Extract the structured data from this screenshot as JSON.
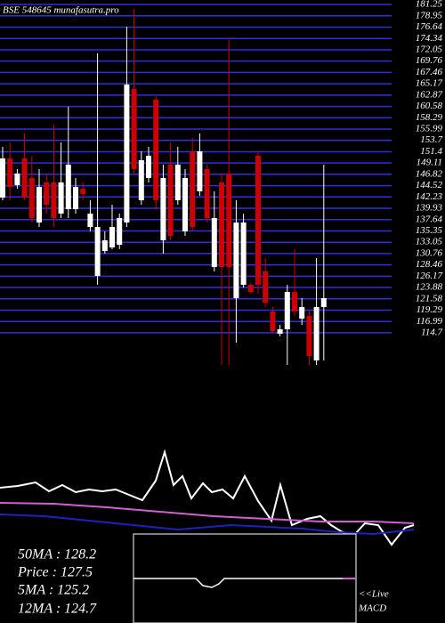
{
  "chart_data": {
    "type": "candlestick",
    "title": "BSE 548645 munafasutra.pro",
    "ylim": [
      107.83,
      182.15
    ],
    "yticks": [
      181.25,
      178.95,
      176.64,
      174.34,
      172.05,
      169.76,
      167.46,
      165.17,
      162.87,
      160.58,
      158.29,
      155.99,
      153.7,
      151.4,
      149.11,
      146.82,
      144.52,
      142.23,
      139.93,
      137.64,
      135.35,
      133.05,
      130.76,
      128.46,
      126.17,
      123.88,
      121.58,
      119.29,
      116.99,
      114.7
    ],
    "grid": true,
    "grid_color": "#2e2ee0",
    "up_color": "#ffffff",
    "down_color": "#cc0000",
    "open": [
      142.1,
      150.04,
      144.63,
      150.04,
      146.07,
      137.05,
      145.17,
      145.17,
      138.86,
      139.76,
      139.76,
      143.91,
      136.15,
      126.23,
      131.28,
      132.0,
      132.54,
      137.05,
      164.11,
      141.56,
      146.07,
      161.95,
      133.44,
      148.78,
      141.56,
      135.25,
      151.48,
      143.37,
      147.88,
      128.03,
      145.17,
      146.97,
      121.72,
      124.43,
      124.43,
      150.58,
      127.13,
      119.01,
      114.5,
      115.41,
      122.98,
      117.57,
      118.11,
      109.09,
      119.92
    ],
    "high": [
      152.39,
      153.29,
      147.88,
      155.09,
      150.58,
      147.88,
      146.97,
      156.9,
      153.29,
      160.5,
      146.07,
      145.17,
      141.56,
      171.33,
      135.25,
      140.66,
      138.86,
      176.74,
      180.35,
      151.48,
      152.39,
      162.67,
      148.78,
      153.29,
      152.39,
      147.88,
      154.19,
      155.09,
      148.78,
      143.37,
      146.97,
      174.03,
      141.56,
      138.86,
      124.79,
      151.48,
      129.84,
      119.92,
      116.31,
      124.43,
      131.64,
      121.72,
      119.37,
      129.84,
      148.78
    ],
    "low": [
      141.56,
      141.56,
      143.91,
      141.56,
      137.05,
      136.15,
      138.86,
      136.15,
      137.95,
      137.95,
      138.86,
      141.56,
      135.25,
      124.43,
      130.74,
      131.64,
      131.64,
      136.15,
      146.97,
      140.66,
      145.17,
      139.76,
      130.74,
      133.44,
      140.66,
      134.35,
      135.25,
      142.46,
      137.05,
      127.13,
      108.19,
      108.19,
      112.7,
      123.88,
      122.62,
      122.62,
      119.92,
      114.5,
      113.96,
      108.19,
      118.11,
      116.31,
      108.19,
      108.19,
      109.09
    ],
    "close": [
      150.04,
      144.27,
      146.97,
      142.1,
      137.95,
      144.27,
      140.66,
      137.95,
      145.17,
      148.78,
      144.27,
      142.82,
      138.86,
      136.15,
      133.44,
      136.15,
      137.95,
      165.01,
      147.88,
      149.68,
      150.58,
      141.56,
      146.07,
      134.35,
      148.78,
      146.07,
      136.15,
      151.48,
      137.95,
      137.95,
      128.03,
      128.03,
      137.05,
      137.05,
      122.98,
      124.43,
      120.82,
      115.05,
      115.41,
      122.98,
      119.01,
      119.92,
      109.99,
      119.92,
      121.72
    ]
  },
  "indicator_panel": {
    "labels": [
      "50MA : 128.2",
      "Price  : 127.5",
      "5MA : 125.2",
      "12MA : 124.7"
    ],
    "macd_labels": [
      "<<Live",
      "MACD"
    ]
  }
}
